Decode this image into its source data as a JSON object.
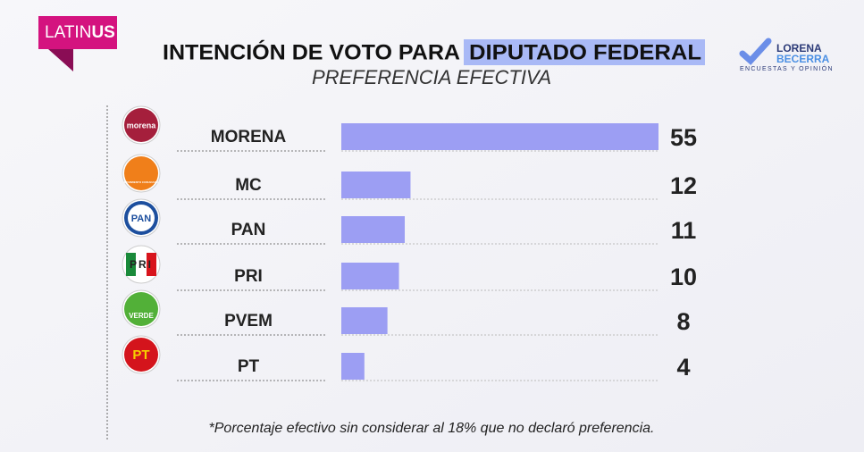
{
  "chart_data": {
    "type": "bar",
    "brand_left": [
      "LATIN",
      "US"
    ],
    "title": "INTENCIÓN DE VOTO PARA",
    "title_highlight": "DIPUTADO FEDERAL",
    "subtitle": "PREFERENCIA EFECTIVA",
    "brand_right": [
      "LORENA",
      "BECERRA",
      "ENCUESTAS Y OPINIÓN"
    ],
    "categories": [
      "MORENA",
      "MC",
      "PAN",
      "PRI",
      "PVEM",
      "PT"
    ],
    "logo_labels": [
      "morena",
      "MOVIMIENTO CIUDADANO",
      "PAN",
      "PRI",
      "VERDE",
      "PT"
    ],
    "values": [
      55,
      12,
      11,
      10,
      8,
      4
    ],
    "color": "#9c9ef3",
    "footnote": "*Porcentaje efectivo sin considerar al 18% que no declaró preferencia."
  }
}
